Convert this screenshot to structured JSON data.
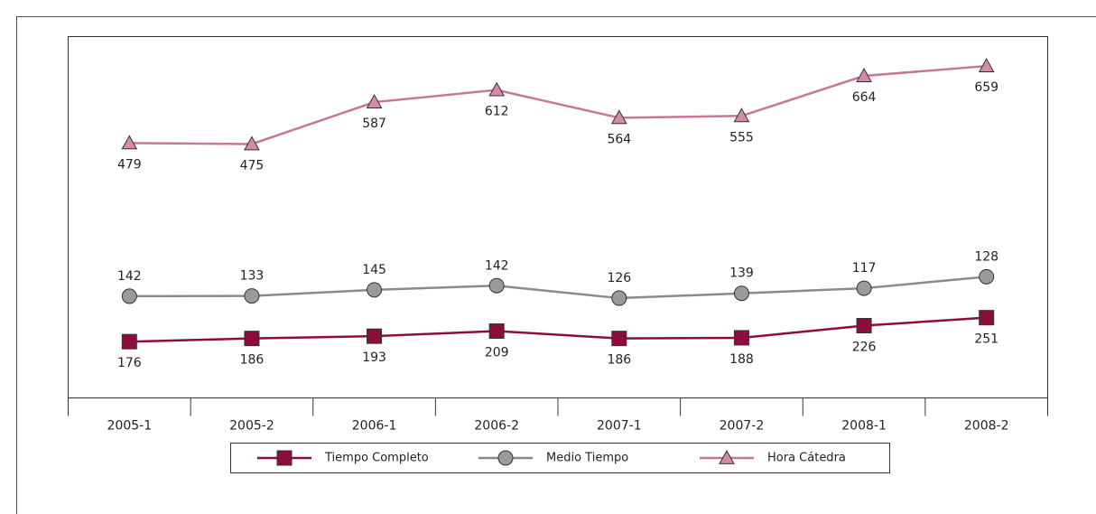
{
  "chart_data": {
    "type": "line",
    "stacked": true,
    "categories": [
      "2005-1",
      "2005-2",
      "2006-1",
      "2006-2",
      "2007-1",
      "2007-2",
      "2008-1",
      "2008-2"
    ],
    "series": [
      {
        "name": "Tiempo Completo",
        "color": "#8c0c3c",
        "marker": "square",
        "label_position": "below",
        "values": [
          176,
          186,
          193,
          209,
          186,
          188,
          226,
          251
        ]
      },
      {
        "name": "Medio Tiempo",
        "color": "#8a8a8a",
        "marker": "circle",
        "label_position": "above",
        "values": [
          142,
          133,
          145,
          142,
          126,
          139,
          117,
          128
        ]
      },
      {
        "name": "Hora Cátedra",
        "color": "#c8759a",
        "marker": "triangle",
        "label_position": "below",
        "values": [
          479,
          475,
          587,
          612,
          564,
          555,
          664,
          659
        ]
      }
    ],
    "ylim": [
      0,
      1130
    ]
  }
}
